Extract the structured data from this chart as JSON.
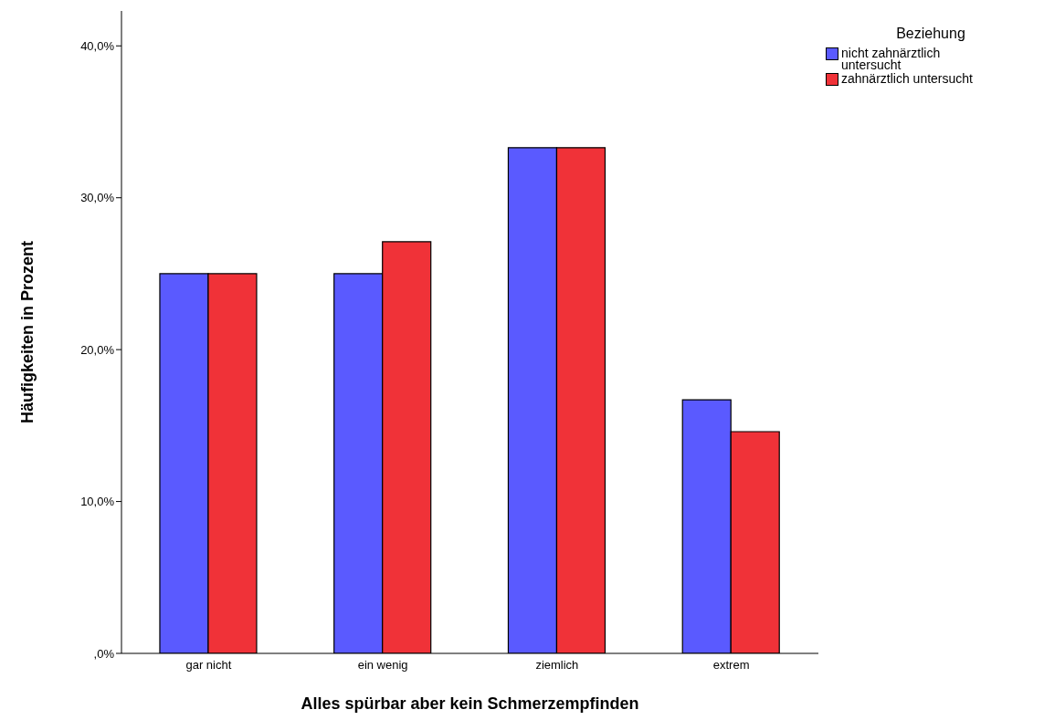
{
  "chart_data": {
    "type": "bar",
    "xlabel": "Alles spürbar aber kein Schmerzempfinden",
    "ylabel": "Häufigkeiten in Prozent",
    "legend_title": "Beziehung",
    "categories": [
      "gar nicht",
      "ein wenig",
      "ziemlich",
      "extrem"
    ],
    "series": [
      {
        "name": "nicht zahnärztlich untersucht",
        "color": "#5a5aff",
        "values": [
          25.0,
          25.0,
          33.3,
          16.7
        ]
      },
      {
        "name": "zahnärztlich untersucht",
        "color": "#f03238",
        "values": [
          25.0,
          27.1,
          33.3,
          14.6
        ]
      }
    ],
    "ylim": [
      0,
      42.3
    ],
    "yticks": [
      {
        "value": 0,
        "label": ",0%"
      },
      {
        "value": 10,
        "label": "10,0%"
      },
      {
        "value": 20,
        "label": "20,0%"
      },
      {
        "value": 30,
        "label": "30,0%"
      },
      {
        "value": 40,
        "label": "40,0%"
      }
    ],
    "grid": false,
    "legend": "top right"
  }
}
